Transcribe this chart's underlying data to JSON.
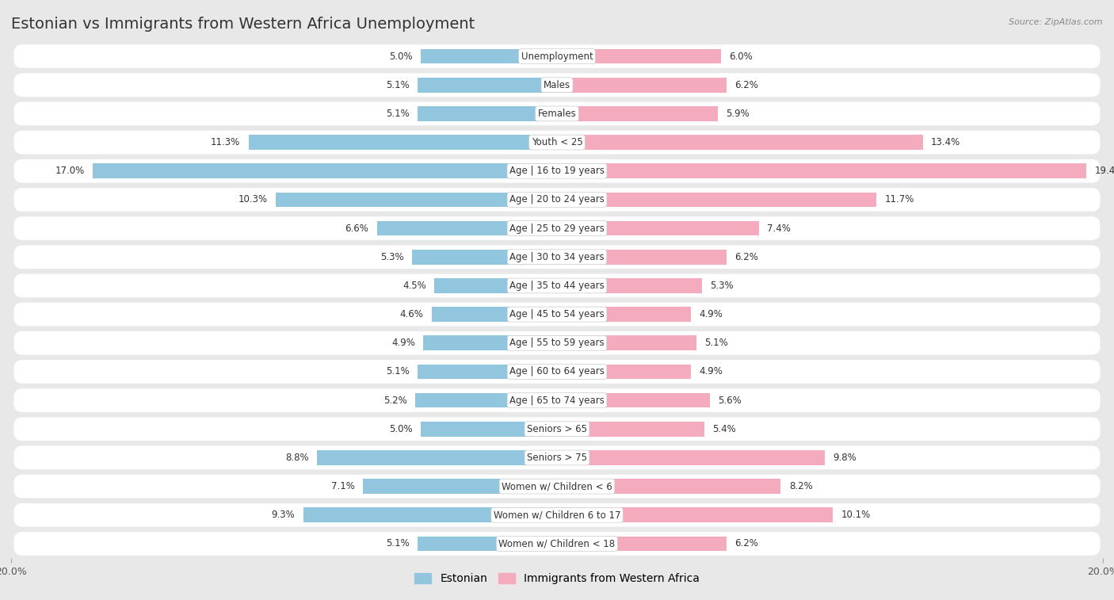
{
  "title": "Estonian vs Immigrants from Western Africa Unemployment",
  "source": "Source: ZipAtlas.com",
  "categories": [
    "Unemployment",
    "Males",
    "Females",
    "Youth < 25",
    "Age | 16 to 19 years",
    "Age | 20 to 24 years",
    "Age | 25 to 29 years",
    "Age | 30 to 34 years",
    "Age | 35 to 44 years",
    "Age | 45 to 54 years",
    "Age | 55 to 59 years",
    "Age | 60 to 64 years",
    "Age | 65 to 74 years",
    "Seniors > 65",
    "Seniors > 75",
    "Women w/ Children < 6",
    "Women w/ Children 6 to 17",
    "Women w/ Children < 18"
  ],
  "estonian_values": [
    5.0,
    5.1,
    5.1,
    11.3,
    17.0,
    10.3,
    6.6,
    5.3,
    4.5,
    4.6,
    4.9,
    5.1,
    5.2,
    5.0,
    8.8,
    7.1,
    9.3,
    5.1
  ],
  "immigrant_values": [
    6.0,
    6.2,
    5.9,
    13.4,
    19.4,
    11.7,
    7.4,
    6.2,
    5.3,
    4.9,
    5.1,
    4.9,
    5.6,
    5.4,
    9.8,
    8.2,
    10.1,
    6.2
  ],
  "estonian_color": "#92C5DE",
  "immigrant_color": "#F4ABBE",
  "bg_color": "#E8E8E8",
  "row_color": "#FFFFFF",
  "max_val": 20.0,
  "title_fontsize": 14,
  "label_fontsize": 8.5,
  "value_fontsize": 8.5,
  "legend_labels": [
    "Estonian",
    "Immigrants from Western Africa"
  ]
}
